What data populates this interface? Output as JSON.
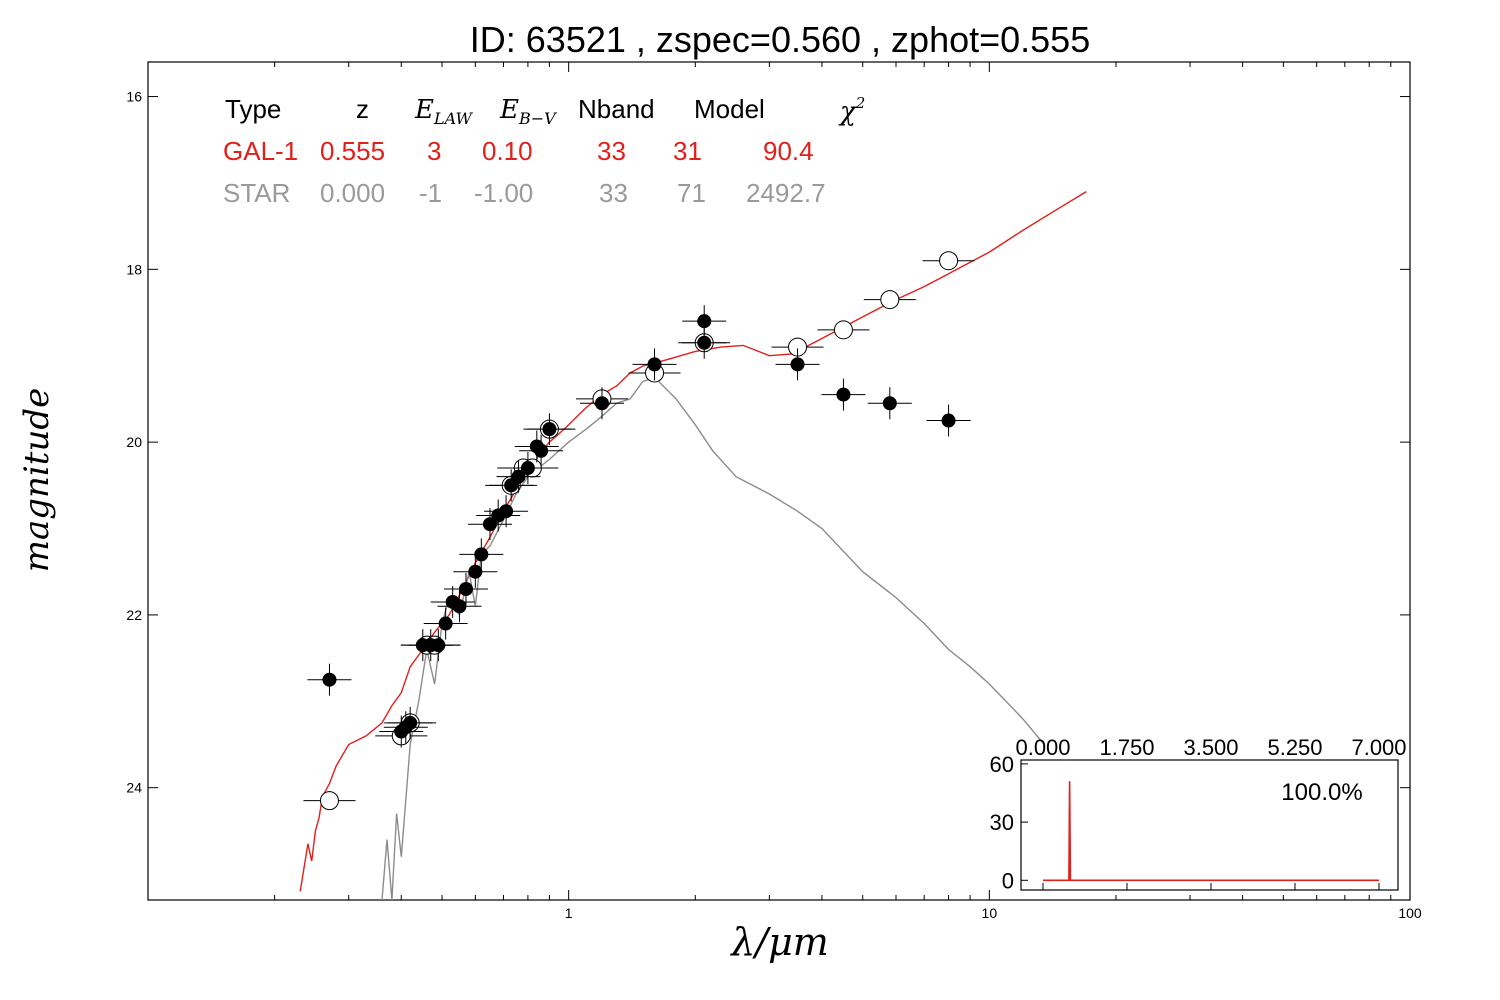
{
  "title": "ID:  63521 , zspec=0.560 , zphot=0.555",
  "colors": {
    "galaxy": "#e0201b",
    "star": "#8c8c8c",
    "axis": "#000000"
  },
  "legend": {
    "headers": [
      "Type",
      "z",
      "E_{LAW}",
      "E_{B-V}",
      "Nband",
      "Model",
      "χ²"
    ],
    "rows": [
      {
        "cells": [
          "GAL-1",
          "0.555",
          "3",
          "0.10",
          "33",
          "31",
          "90.4"
        ],
        "color": "#e0201b"
      },
      {
        "cells": [
          "STAR",
          "0.000",
          "-1",
          "-1.00",
          "33",
          "71",
          "2492.7"
        ],
        "color": "#9a9a9a"
      }
    ]
  },
  "chart_data": [
    {
      "type": "scatter",
      "xlabel": "λ/μm",
      "ylabel": "magnitude",
      "xscale": "log",
      "xlim": [
        0.1,
        100
      ],
      "ylim": [
        25.3,
        15.6
      ],
      "xticks": [
        1,
        10,
        100
      ],
      "xtick_labels": [
        "1",
        "10",
        "100"
      ],
      "yticks": [
        16,
        18,
        20,
        22,
        24
      ],
      "ytick_labels": [
        "16",
        "18",
        "20",
        "22",
        "24"
      ],
      "series": [
        {
          "kind": "line",
          "color": "#e0201b",
          "x": [
            0.23,
            0.24,
            0.245,
            0.25,
            0.255,
            0.26,
            0.27,
            0.28,
            0.3,
            0.33,
            0.36,
            0.38,
            0.4,
            0.42,
            0.45,
            0.48,
            0.52,
            0.56,
            0.6,
            0.65,
            0.7,
            0.75,
            0.8,
            0.85,
            0.9,
            0.95,
            1.0,
            1.1,
            1.2,
            1.3,
            1.4,
            1.5,
            1.7,
            2.0,
            2.3,
            2.6,
            3.0,
            3.4,
            4.0,
            5.0,
            6.0,
            7.0,
            8.0,
            10.0,
            12.0,
            14.0,
            17.0
          ],
          "y": [
            25.2,
            24.65,
            24.85,
            24.5,
            24.35,
            24.1,
            23.95,
            23.75,
            23.5,
            23.4,
            23.25,
            23.05,
            22.9,
            22.6,
            22.4,
            22.2,
            22.0,
            21.7,
            21.4,
            21.1,
            20.8,
            20.55,
            20.35,
            20.15,
            20.0,
            19.9,
            19.8,
            19.6,
            19.45,
            19.35,
            19.2,
            19.12,
            19.05,
            18.95,
            18.9,
            18.88,
            19.0,
            18.98,
            18.8,
            18.55,
            18.35,
            18.2,
            18.05,
            17.8,
            17.55,
            17.35,
            17.1
          ]
        },
        {
          "kind": "line",
          "color": "#8c8c8c",
          "x": [
            0.36,
            0.37,
            0.38,
            0.39,
            0.4,
            0.42,
            0.44,
            0.46,
            0.48,
            0.5,
            0.52,
            0.55,
            0.58,
            0.6,
            0.62,
            0.65,
            0.7,
            0.75,
            0.8,
            0.9,
            1.0,
            1.1,
            1.2,
            1.3,
            1.4,
            1.5,
            1.6,
            1.8,
            2.0,
            2.2,
            2.5,
            3.0,
            3.5,
            4.0,
            5.0,
            6.0,
            7.0,
            8.0,
            9.0,
            10.0,
            12.0,
            13.5
          ],
          "y": [
            25.3,
            24.6,
            25.3,
            24.3,
            24.8,
            23.5,
            23.0,
            22.4,
            22.8,
            22.1,
            21.8,
            22.0,
            21.5,
            21.9,
            21.3,
            21.2,
            20.9,
            20.6,
            20.4,
            20.2,
            20.0,
            19.85,
            19.7,
            19.55,
            19.5,
            19.3,
            19.25,
            19.5,
            19.8,
            20.1,
            20.4,
            20.6,
            20.8,
            21.0,
            21.5,
            21.8,
            22.1,
            22.4,
            22.6,
            22.8,
            23.2,
            23.5
          ]
        },
        {
          "kind": "points-filled",
          "x": [
            0.27,
            0.4,
            0.41,
            0.42,
            0.45,
            0.47,
            0.49,
            0.51,
            0.53,
            0.55,
            0.57,
            0.6,
            0.62,
            0.65,
            0.68,
            0.71,
            0.73,
            0.76,
            0.8,
            0.84,
            0.86,
            0.9,
            1.2,
            1.6,
            2.1,
            2.1,
            3.5,
            4.5,
            5.8,
            8.0
          ],
          "y": [
            22.75,
            23.35,
            23.3,
            23.25,
            22.35,
            22.35,
            22.35,
            22.1,
            21.85,
            21.9,
            21.7,
            21.5,
            21.3,
            20.95,
            20.85,
            20.8,
            20.5,
            20.4,
            20.3,
            20.05,
            20.1,
            19.85,
            19.55,
            19.1,
            18.6,
            18.85,
            19.1,
            19.45,
            19.55,
            19.75
          ]
        },
        {
          "kind": "points-open",
          "x": [
            0.27,
            0.4,
            0.42,
            0.46,
            0.48,
            0.73,
            0.78,
            0.82,
            0.9,
            1.2,
            1.6,
            2.1,
            3.5,
            4.5,
            5.8,
            8.0
          ],
          "y": [
            24.15,
            23.4,
            23.25,
            22.35,
            22.35,
            20.5,
            20.3,
            20.3,
            19.85,
            19.5,
            19.2,
            18.85,
            18.9,
            18.7,
            18.35,
            17.9
          ]
        }
      ]
    },
    {
      "type": "line",
      "inset": true,
      "xlim": [
        0,
        7
      ],
      "xticks": [
        0.0,
        1.75,
        3.5,
        5.25,
        7.0
      ],
      "xtick_labels": [
        "0.000",
        "1.750",
        "3.500",
        "5.250",
        "7.000"
      ],
      "ylim": [
        -5,
        62
      ],
      "yticks": [
        0,
        30,
        60
      ],
      "ytick_labels": [
        "0",
        "30",
        "60"
      ],
      "annotation": "100.0%",
      "color": "#e0201b",
      "x": [
        0.0,
        0.5,
        0.54,
        0.555,
        0.57,
        0.6,
        7.0
      ],
      "y": [
        0,
        0,
        0,
        51,
        0,
        0,
        0
      ]
    }
  ]
}
